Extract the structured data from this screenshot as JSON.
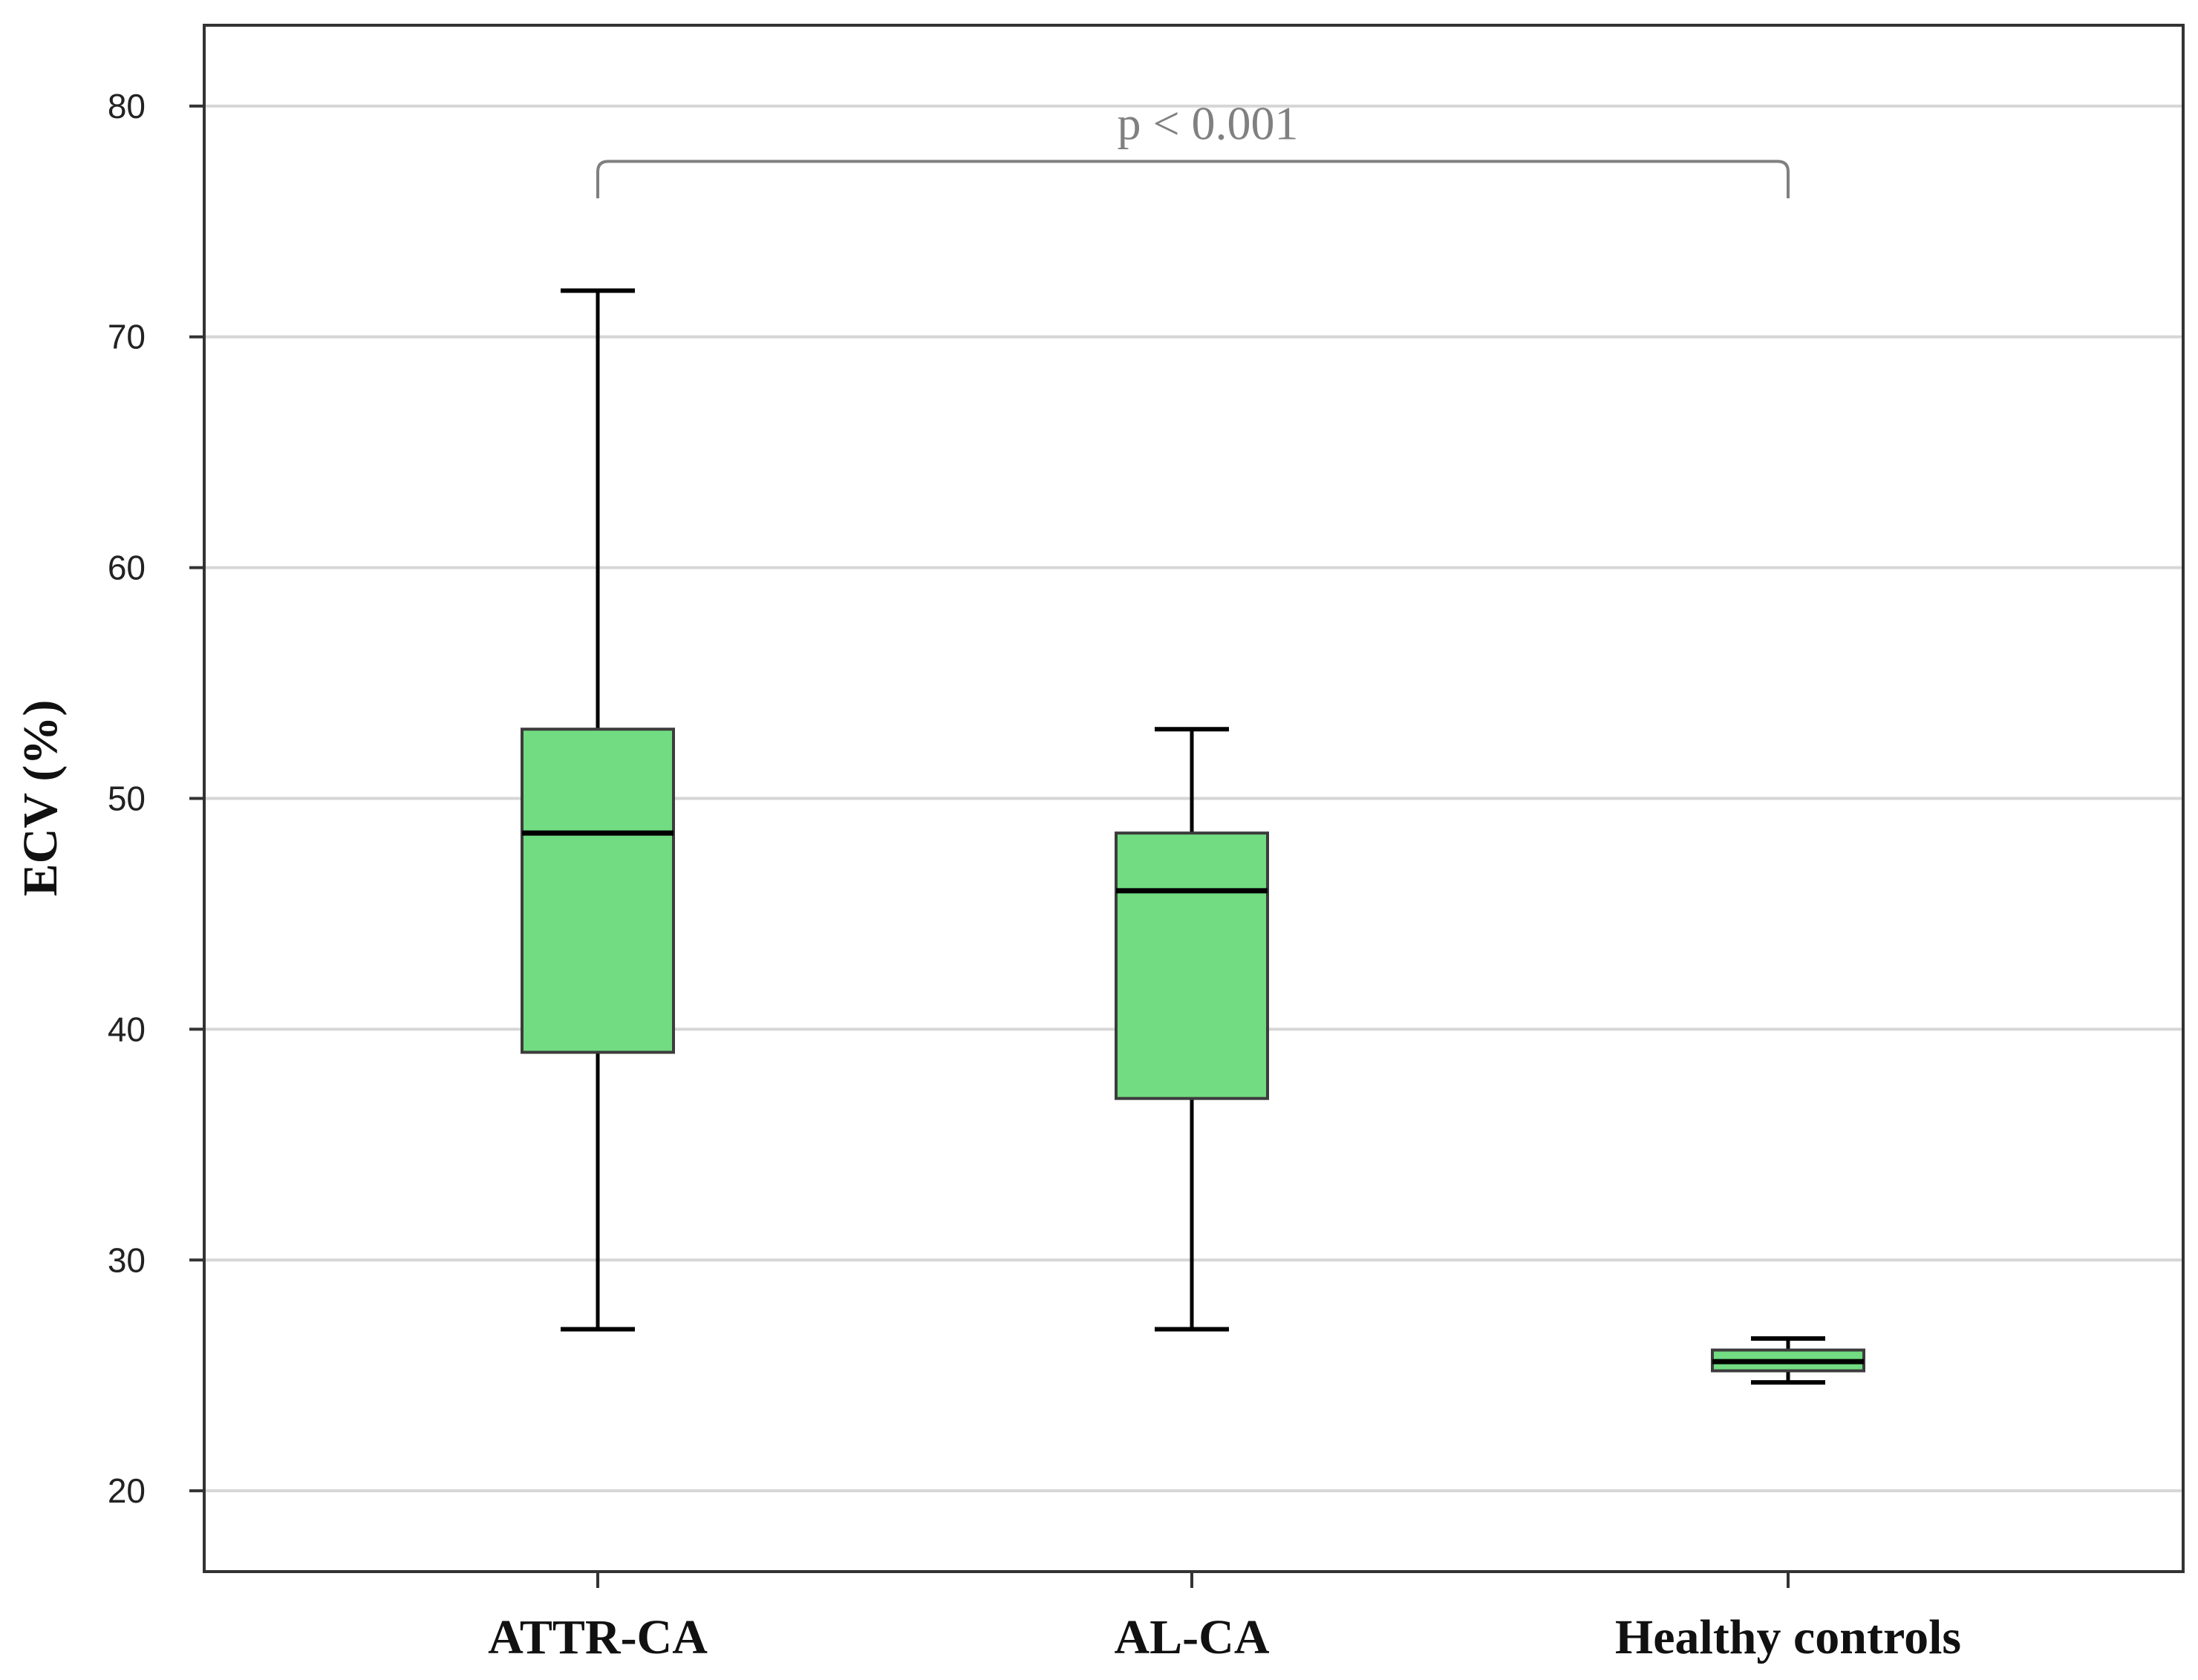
{
  "chart_data": {
    "type": "boxplot",
    "title": "",
    "xlabel": "",
    "ylabel": "ECV (%)",
    "ylim": [
      16.5,
      83.5
    ],
    "yticks": [
      20,
      30,
      40,
      50,
      60,
      70,
      80
    ],
    "ytick_labels": [
      "20",
      "30",
      "40",
      "50",
      "60",
      "70",
      "80"
    ],
    "grid": true,
    "categories": [
      "ATTR-CA",
      "AL-CA",
      "Healthy controls"
    ],
    "boxes": [
      {
        "name": "ATTR-CA",
        "whisker_low": 27,
        "q1": 39,
        "median": 48.5,
        "q3": 53,
        "whisker_high": 72
      },
      {
        "name": "AL-CA",
        "whisker_low": 27,
        "q1": 37,
        "median": 46,
        "q3": 48.5,
        "whisker_high": 53
      },
      {
        "name": "Healthy controls",
        "whisker_low": 24.7,
        "q1": 25.2,
        "median": 25.6,
        "q3": 26.1,
        "whisker_high": 26.6
      }
    ],
    "annotation": {
      "text": "p < 0.001",
      "from_category": "ATTR-CA",
      "to_category": "Healthy controls",
      "bracket_y": 77.6,
      "leg_bottom_y": 76.0
    },
    "colors": {
      "box_fill": "#72dc82",
      "box_edge": "#3c3c3c",
      "median": "#000000",
      "whisker": "#000000",
      "grid": "#d6d6d6",
      "frame": "#333333",
      "annotation": "#808080"
    }
  }
}
